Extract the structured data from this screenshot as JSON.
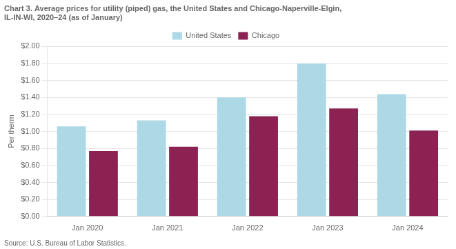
{
  "chart_data": {
    "type": "bar",
    "title": "Chart 3. Average prices for utility (piped) gas, the United States and Chicago-Naperville-Elgin,\nIL-IN-WI, 2020–24 (as of January)",
    "ylabel": "Per therm",
    "source": "Source: U.S. Bureau of Labor Statistics.",
    "categories": [
      "Jan 2020",
      "Jan 2021",
      "Jan 2022",
      "Jan 2023",
      "Jan 2024"
    ],
    "series": [
      {
        "name": "United States",
        "color": "#add8e6",
        "values": [
          1.06,
          1.13,
          1.4,
          1.8,
          1.44
        ]
      },
      {
        "name": "Chicago",
        "color": "#8b2252",
        "values": [
          0.77,
          0.82,
          1.18,
          1.27,
          1.01
        ]
      }
    ],
    "ylim": [
      0,
      2.0
    ],
    "yticks": [
      {
        "value": 0,
        "label": "$0.00"
      },
      {
        "value": 0.2,
        "label": "$0.20"
      },
      {
        "value": 0.4,
        "label": "$0.40"
      },
      {
        "value": 0.6,
        "label": "$0.60"
      },
      {
        "value": 0.8,
        "label": "$0.80"
      },
      {
        "value": 1.0,
        "label": "$1.00"
      },
      {
        "value": 1.2,
        "label": "$1.20"
      },
      {
        "value": 1.4,
        "label": "$1.40"
      },
      {
        "value": 1.6,
        "label": "$1.60"
      },
      {
        "value": 1.8,
        "label": "$1.80"
      },
      {
        "value": 2.0,
        "label": "$2.00"
      }
    ],
    "grid": true,
    "legend": "top"
  }
}
